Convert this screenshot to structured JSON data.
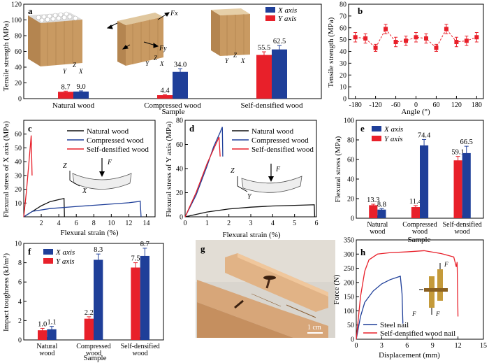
{
  "colors": {
    "red": "#e8202a",
    "blue": "#1f3f99",
    "black": "#111111",
    "wood": "#c99a62"
  },
  "panels": {
    "a": {
      "letter": "a",
      "xlabel": "Sample",
      "ylabel": "Tensile strength (MPa)",
      "legend": [
        "X axis",
        "Y axis"
      ],
      "force_labels": [
        "Fx",
        "Fy"
      ],
      "axis_letters": [
        "Y",
        "Z",
        "X"
      ]
    },
    "b": {
      "letter": "b",
      "xlabel": "Angle (°)",
      "ylabel": "Tensile strength (MPa)"
    },
    "c": {
      "letter": "c",
      "xlabel": "Flexural strain (%)",
      "ylabel": "Flexural stress of X axis (MPa)",
      "legend": [
        "Natural wood",
        "Compressed wood",
        "Self-densified wood"
      ],
      "inset_labels": [
        "Z",
        "F",
        "X"
      ]
    },
    "d": {
      "letter": "d",
      "xlabel": "Flexural strain (%)",
      "ylabel": "Flexural stress of Y axis (MPa)",
      "legend": [
        "Natural wood",
        "Compressed wood",
        "Self-densified wood"
      ],
      "inset_labels": [
        "Z",
        "F",
        "Y"
      ]
    },
    "e": {
      "letter": "e",
      "xlabel": "Sample",
      "ylabel": "Flexural stress (MPa)",
      "legend": [
        "X axis",
        "Y axis"
      ]
    },
    "f": {
      "letter": "f",
      "xlabel": "Sample",
      "ylabel": "Impact toughness (kJ/m²)",
      "legend": [
        "X axis",
        "Y axis"
      ]
    },
    "g": {
      "letter": "g",
      "scale_bar": "1 cm"
    },
    "h": {
      "letter": "h",
      "xlabel": "Displacement (mm)",
      "ylabel": "Force (N)",
      "legend": [
        "Steel nail",
        "Self-densified wood nail"
      ],
      "inset_labels": [
        "F",
        "F",
        "F"
      ]
    }
  },
  "chart_data": [
    {
      "panel": "a",
      "type": "bar",
      "categories": [
        "Natural wood",
        "Compressed wood",
        "Self-densified wood"
      ],
      "series": [
        {
          "name": "Y axis",
          "values": [
            8.7,
            4.4,
            55.5
          ],
          "errors": [
            0.8,
            0.6,
            4
          ]
        },
        {
          "name": "X axis",
          "values": [
            9.0,
            34.0,
            62.5
          ],
          "errors": [
            0.8,
            4,
            5
          ]
        }
      ],
      "ylim": [
        0,
        120
      ],
      "yticks": [
        0,
        20,
        40,
        60,
        80,
        100,
        120
      ]
    },
    {
      "panel": "b",
      "type": "line",
      "x": [
        -180,
        -150,
        -120,
        -90,
        -60,
        -30,
        0,
        30,
        60,
        90,
        120,
        150,
        180
      ],
      "y": [
        52,
        51,
        43,
        59,
        48,
        49,
        52,
        51,
        43,
        59,
        48,
        49,
        52
      ],
      "errors": [
        4,
        4,
        3,
        4,
        4,
        4,
        4,
        4,
        3,
        4,
        4,
        4,
        4
      ],
      "xlim": [
        -200,
        200
      ],
      "ylim": [
        0,
        80
      ],
      "xticks": [
        -180,
        -120,
        -60,
        0,
        60,
        120,
        180
      ],
      "yticks": [
        0,
        10,
        20,
        30,
        40,
        50,
        60,
        70,
        80
      ]
    },
    {
      "panel": "c",
      "type": "line",
      "xlim": [
        0,
        15
      ],
      "ylim": [
        0,
        70
      ],
      "xticks": [
        2,
        4,
        6,
        8,
        10,
        12,
        14
      ],
      "yticks": [
        10,
        20,
        30,
        40,
        50,
        60
      ],
      "series": [
        {
          "name": "Natural wood",
          "points": [
            [
              0,
              0
            ],
            [
              1,
              4
            ],
            [
              2,
              8
            ],
            [
              3,
              11
            ],
            [
              4,
              12.5
            ],
            [
              4.6,
              13.3
            ],
            [
              4.65,
              0
            ]
          ]
        },
        {
          "name": "Compressed wood",
          "points": [
            [
              0,
              0
            ],
            [
              1,
              4
            ],
            [
              3,
              6
            ],
            [
              6,
              7.5
            ],
            [
              9,
              8.8
            ],
            [
              12,
              10.2
            ],
            [
              13,
              11
            ],
            [
              13.3,
              11.4
            ],
            [
              13.4,
              0
            ]
          ]
        },
        {
          "name": "Self-densified wood",
          "points": [
            [
              0,
              0
            ],
            [
              0.3,
              18
            ],
            [
              0.6,
              40
            ],
            [
              0.85,
              59
            ],
            [
              0.9,
              45
            ],
            [
              0.95,
              30
            ]
          ]
        }
      ]
    },
    {
      "panel": "d",
      "type": "line",
      "xlim": [
        0,
        6
      ],
      "ylim": [
        0,
        80
      ],
      "xticks": [
        0,
        1,
        2,
        3,
        4,
        5,
        6
      ],
      "yticks": [
        0,
        20,
        40,
        60,
        80
      ],
      "series": [
        {
          "name": "Natural wood",
          "points": [
            [
              0,
              0
            ],
            [
              1,
              4
            ],
            [
              2,
              6.5
            ],
            [
              3,
              8
            ],
            [
              4,
              9
            ],
            [
              5,
              9.5
            ],
            [
              5.9,
              10
            ],
            [
              5.92,
              0
            ]
          ]
        },
        {
          "name": "Compressed wood",
          "points": [
            [
              0,
              0
            ],
            [
              0.5,
              18
            ],
            [
              1.0,
              42
            ],
            [
              1.3,
              58
            ],
            [
              1.6,
              70
            ],
            [
              1.7,
              74.4
            ],
            [
              1.72,
              50
            ]
          ]
        },
        {
          "name": "Self-densified wood",
          "points": [
            [
              0,
              0
            ],
            [
              0.5,
              20
            ],
            [
              1.0,
              44
            ],
            [
              1.3,
              56
            ],
            [
              1.55,
              66
            ],
            [
              1.6,
              50
            ]
          ]
        }
      ]
    },
    {
      "panel": "e",
      "type": "bar",
      "categories": [
        "Natural wood",
        "Compressed wood",
        "Self-densified wood"
      ],
      "series": [
        {
          "name": "Y axis",
          "values": [
            13.3,
            11.4,
            59.1
          ],
          "errors": [
            1,
            1.5,
            4
          ]
        },
        {
          "name": "X axis",
          "values": [
            8.8,
            74.4,
            66.5
          ],
          "errors": [
            1,
            6,
            7
          ]
        }
      ],
      "ylim": [
        0,
        100
      ],
      "yticks": [
        0,
        20,
        40,
        60,
        80,
        100
      ]
    },
    {
      "panel": "f",
      "type": "bar",
      "categories": [
        "Natural wood",
        "Compressed wood",
        "Self-densified wood"
      ],
      "series": [
        {
          "name": "Y axis",
          "values": [
            1.0,
            2.2,
            7.5
          ],
          "errors": [
            0.2,
            0.2,
            0.5
          ]
        },
        {
          "name": "X axis",
          "values": [
            1.1,
            8.3,
            8.7
          ],
          "errors": [
            0.3,
            0.6,
            0.8
          ]
        }
      ],
      "ylim": [
        0,
        10
      ],
      "yticks": [
        0,
        2,
        4,
        6,
        8,
        10
      ]
    },
    {
      "panel": "h",
      "type": "line",
      "xlim": [
        0,
        15
      ],
      "ylim": [
        0,
        350
      ],
      "xticks": [
        0,
        3,
        6,
        9,
        12,
        15
      ],
      "yticks": [
        0,
        50,
        100,
        150,
        200,
        250,
        300,
        350
      ],
      "series": [
        {
          "name": "Steel nail",
          "points": [
            [
              0,
              0
            ],
            [
              0.5,
              80
            ],
            [
              1,
              130
            ],
            [
              2,
              170
            ],
            [
              3,
              195
            ],
            [
              4,
              210
            ],
            [
              5,
              220
            ],
            [
              5.2,
              222
            ],
            [
              5.4,
              160
            ],
            [
              5.5,
              55
            ]
          ]
        },
        {
          "name": "Self-densified wood nail",
          "points": [
            [
              0,
              0
            ],
            [
              0.5,
              150
            ],
            [
              1,
              240
            ],
            [
              1.5,
              280
            ],
            [
              2.5,
              300
            ],
            [
              4,
              305
            ],
            [
              6,
              308
            ],
            [
              8,
              312
            ],
            [
              10,
              302
            ],
            [
              11.5,
              290
            ],
            [
              11.8,
              255
            ],
            [
              11.9,
              272
            ],
            [
              12,
              80
            ]
          ]
        }
      ]
    }
  ]
}
